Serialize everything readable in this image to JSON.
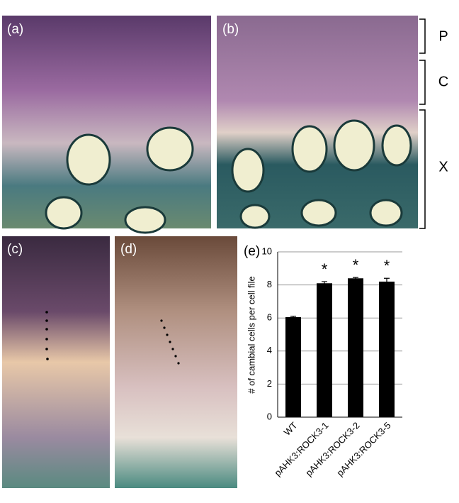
{
  "panels": [
    "(a)",
    "(b)",
    "(c)",
    "(d)",
    "(e)"
  ],
  "zones": [
    "P",
    "C",
    "X"
  ],
  "chart_data": {
    "type": "bar",
    "ylabel": "# of cambial cells per cell file",
    "categories": [
      "WT",
      "pAHK3:ROCK3-1",
      "pAHK3:ROCK3-2",
      "pAHK3:ROCK3-5"
    ],
    "values": [
      6.05,
      8.1,
      8.4,
      8.2
    ],
    "errors": [
      0.05,
      0.1,
      0.05,
      0.2
    ],
    "significance": [
      null,
      "*",
      "*",
      "*"
    ],
    "color": "#000000",
    "ylim": [
      0,
      10
    ],
    "yticks": [
      0,
      2,
      4,
      6,
      8,
      10
    ],
    "grid": true
  }
}
